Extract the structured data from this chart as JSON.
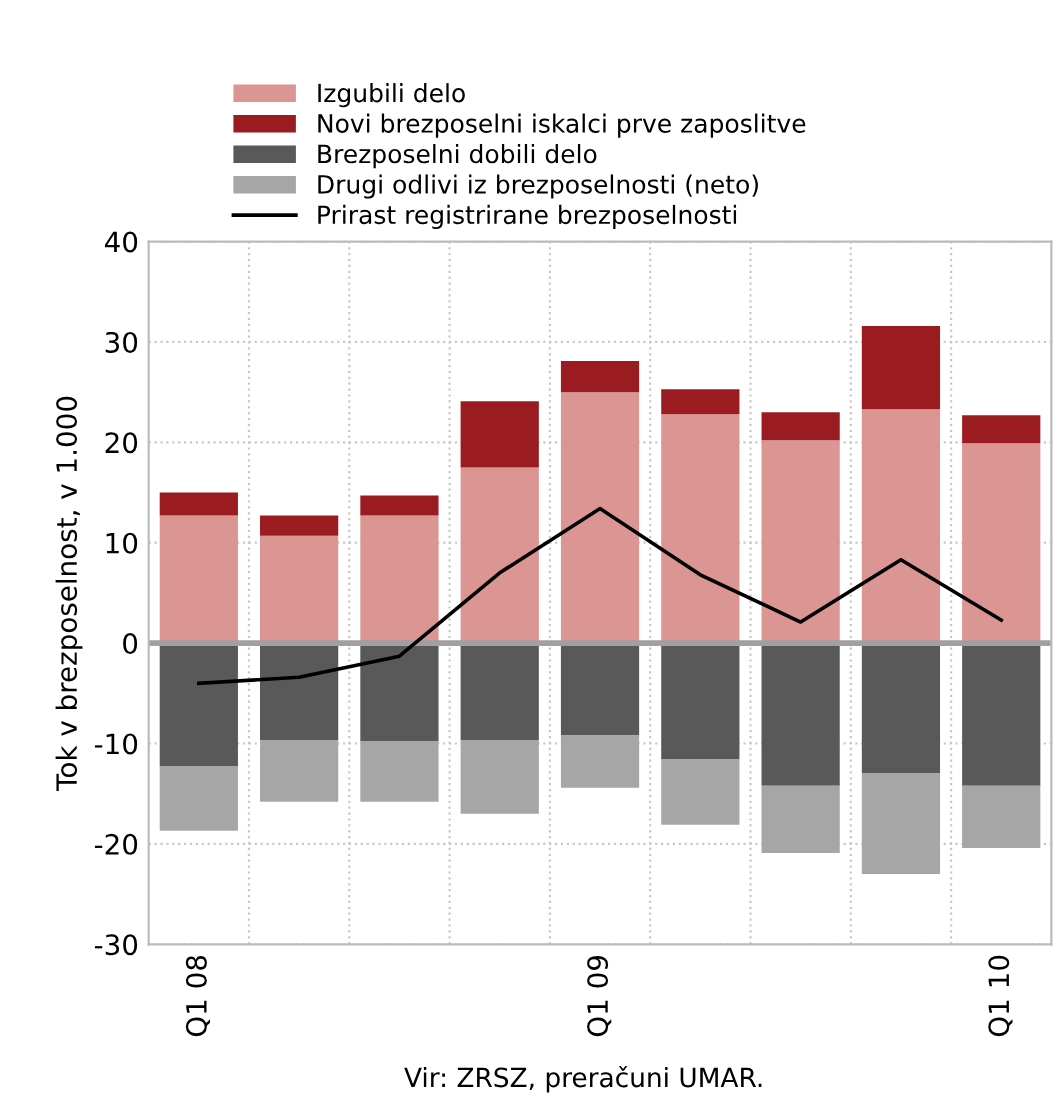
{
  "chart_data": {
    "type": "bar",
    "stacked": true,
    "categories": [
      "Q1 08",
      null,
      null,
      null,
      "Q1 09",
      null,
      null,
      null,
      "Q1 10"
    ],
    "ylabel": "Tok v brezposelnost, v 1.000",
    "ylim": [
      -30,
      40
    ],
    "yticks": [
      -30,
      -20,
      -10,
      0,
      10,
      20,
      30,
      40
    ],
    "grid": true,
    "legend": "top left",
    "annotations": [
      "Vir: ZRSZ, preračuni UMAR."
    ],
    "series": [
      {
        "name": "Izgubili delo",
        "color": "#db9593",
        "values": [
          12.7,
          10.7,
          12.7,
          17.5,
          25.0,
          22.8,
          20.2,
          23.3,
          19.9
        ]
      },
      {
        "name": "Novi brezposelni iskalci prve zaposlitve",
        "color": "#9b1c20",
        "values": [
          2.3,
          2.0,
          2.0,
          6.6,
          3.1,
          2.5,
          2.8,
          8.3,
          2.8
        ]
      },
      {
        "name": "Brezposelni dobili delo",
        "color": "#595959",
        "values": [
          -12.3,
          -9.7,
          -9.8,
          -9.7,
          -9.2,
          -11.6,
          -14.2,
          -13.0,
          -14.2
        ]
      },
      {
        "name": "Drugi odlivi iz brezposelnosti (neto)",
        "color": "#a6a6a6",
        "values": [
          -6.4,
          -6.1,
          -6.0,
          -7.3,
          -5.2,
          -6.5,
          -6.7,
          -10.0,
          -6.2
        ]
      },
      {
        "name": "Prirast registrirane brezposelnosti",
        "type": "line",
        "color": "#000000",
        "values": [
          -4.0,
          -3.4,
          -1.3,
          7.0,
          13.4,
          6.8,
          2.1,
          8.3,
          2.3
        ]
      }
    ]
  }
}
